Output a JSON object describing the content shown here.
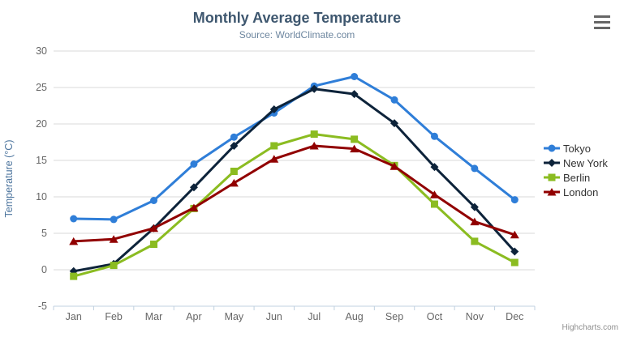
{
  "chart_data": {
    "type": "line",
    "title": "Monthly Average Temperature",
    "subtitle": "Source: WorldClimate.com",
    "xlabel": "",
    "ylabel": "Temperature (°C)",
    "ylim": [
      -5,
      30
    ],
    "ytick_interval": 5,
    "grid": true,
    "legend_position": "right",
    "categories": [
      "Jan",
      "Feb",
      "Mar",
      "Apr",
      "May",
      "Jun",
      "Jul",
      "Aug",
      "Sep",
      "Oct",
      "Nov",
      "Dec"
    ],
    "series": [
      {
        "name": "Tokyo",
        "color": "#2f7ed8",
        "marker": "circle",
        "values": [
          7.0,
          6.9,
          9.5,
          14.5,
          18.2,
          21.5,
          25.2,
          26.5,
          23.3,
          18.3,
          13.9,
          9.6
        ]
      },
      {
        "name": "New York",
        "color": "#0d233a",
        "marker": "diamond",
        "values": [
          -0.2,
          0.8,
          5.7,
          11.3,
          17.0,
          22.0,
          24.8,
          24.1,
          20.1,
          14.1,
          8.6,
          2.5
        ]
      },
      {
        "name": "Berlin",
        "color": "#8bbc21",
        "marker": "square",
        "values": [
          -0.9,
          0.6,
          3.5,
          8.4,
          13.5,
          17.0,
          18.6,
          17.9,
          14.3,
          9.0,
          3.9,
          1.0
        ]
      },
      {
        "name": "London",
        "color": "#910000",
        "marker": "triangle",
        "values": [
          3.9,
          4.2,
          5.7,
          8.5,
          11.9,
          15.2,
          17.0,
          16.6,
          14.2,
          10.3,
          6.6,
          4.8
        ]
      }
    ],
    "colors": {
      "grid_line": "#d8d8d8",
      "axis_line": "#c0d0e0",
      "axis_label": "#666666",
      "axis_title": "#4d759e",
      "title": "#3E576F",
      "subtitle": "#6D869F",
      "legend_text": "#333333"
    }
  },
  "export_menu": {
    "icon": "hamburger-icon"
  },
  "credits": {
    "label": "Highcharts.com"
  }
}
